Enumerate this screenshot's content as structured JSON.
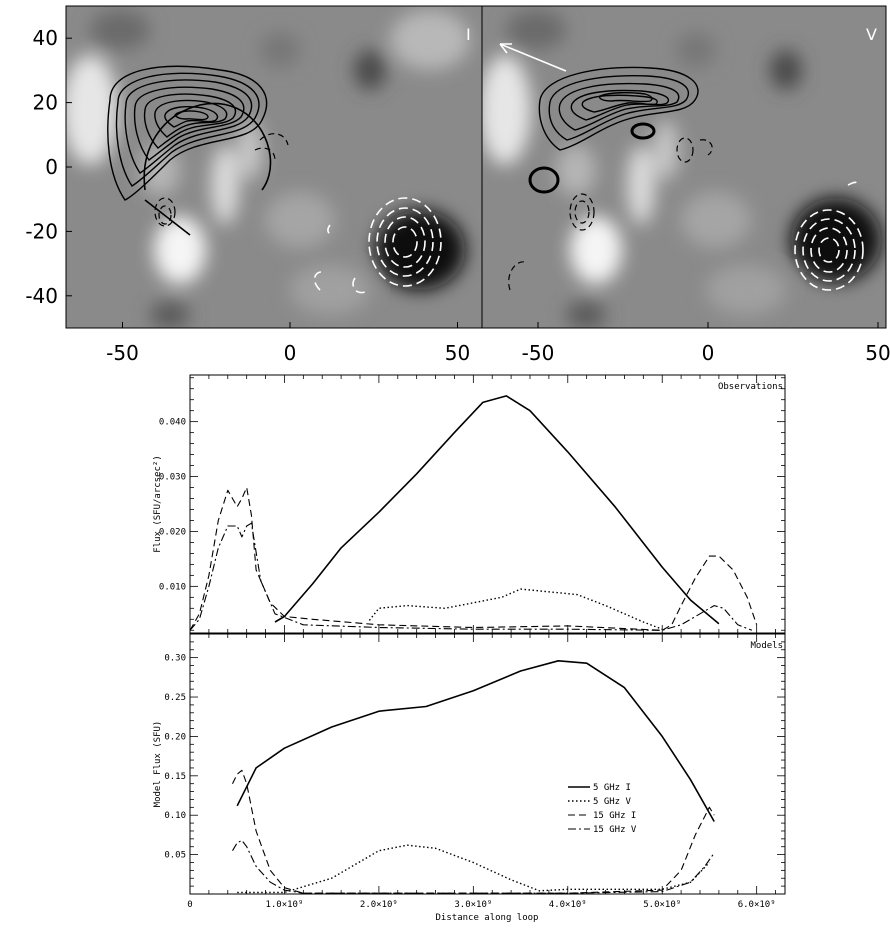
{
  "images": {
    "left": {
      "label": "I",
      "colors": {
        "line": "#000000",
        "dashed": "#ffffff"
      }
    },
    "right": {
      "label": "V",
      "colors": {
        "line": "#000000",
        "dashed": "#ffffff"
      }
    },
    "x_ticks": [
      "-50",
      "0",
      "50"
    ],
    "y_ticks": [
      "40",
      "20",
      "0",
      "-20",
      "-40"
    ]
  },
  "chart_data": [
    {
      "type": "line",
      "annotation": "Observations",
      "ylabel": "Flux (SFU/arcsec²)",
      "xlabel": "",
      "xlim": [
        0,
        6300000000.0
      ],
      "ylim": [
        0.0015,
        0.0485
      ],
      "ytick_values": [
        0.01,
        0.02,
        0.03,
        0.04
      ],
      "ytick_labels": [
        "0.010",
        "0.020",
        "0.030",
        "0.040"
      ],
      "series": [
        {
          "style": "solid",
          "x": [
            900000000.0,
            1000000000.0,
            1300000000.0,
            1600000000.0,
            2000000000.0,
            2400000000.0,
            2800000000.0,
            3100000000.0,
            3350000000.0,
            3600000000.0,
            4000000000.0,
            4500000000.0,
            5000000000.0,
            5300000000.0,
            5600000000.0
          ],
          "values": [
            0.0035,
            0.0045,
            0.0105,
            0.017,
            0.0235,
            0.0305,
            0.038,
            0.0435,
            0.0447,
            0.042,
            0.0345,
            0.0245,
            0.0135,
            0.0075,
            0.0032
          ]
        },
        {
          "style": "dotted",
          "x": [
            1900000000.0,
            2000000000.0,
            2300000000.0,
            2700000000.0,
            3000000000.0,
            3300000000.0,
            3500000000.0,
            3800000000.0,
            4100000000.0,
            4400000000.0,
            4800000000.0,
            5000000000.0
          ],
          "values": [
            0.0038,
            0.006,
            0.0065,
            0.006,
            0.007,
            0.008,
            0.0095,
            0.009,
            0.0085,
            0.0065,
            0.0035,
            0.0022
          ]
        },
        {
          "style": "dashed",
          "x": [
            0,
            100000000.0,
            200000000.0,
            300000000.0,
            400000000.0,
            450000000.0,
            500000000.0,
            550000000.0,
            600000000.0,
            650000000.0,
            700000000.0,
            850000000.0,
            1000000000.0,
            1300000000.0,
            2000000000.0,
            3000000000.0,
            4000000000.0,
            4500000000.0,
            5000000000.0,
            5100000000.0,
            5200000000.0,
            5350000000.0,
            5500000000.0,
            5600000000.0,
            5750000000.0,
            5900000000.0,
            6000000000.0
          ],
          "values": [
            0.002,
            0.005,
            0.012,
            0.022,
            0.0275,
            0.026,
            0.0245,
            0.026,
            0.028,
            0.023,
            0.013,
            0.007,
            0.0045,
            0.004,
            0.003,
            0.0025,
            0.0028,
            0.0024,
            0.002,
            0.003,
            0.0065,
            0.0115,
            0.0155,
            0.0155,
            0.013,
            0.008,
            0.003
          ]
        },
        {
          "style": "dashdot",
          "x": [
            0,
            100000000.0,
            200000000.0,
            300000000.0,
            400000000.0,
            500000000.0,
            550000000.0,
            600000000.0,
            650000000.0,
            750000000.0,
            900000000.0,
            1200000000.0,
            2000000000.0,
            3000000000.0,
            4000000000.0,
            5000000000.0,
            5200000000.0,
            5400000000.0,
            5550000000.0,
            5650000000.0,
            5800000000.0,
            5950000000.0
          ],
          "values": [
            0.002,
            0.004,
            0.01,
            0.017,
            0.021,
            0.021,
            0.019,
            0.021,
            0.0215,
            0.011,
            0.005,
            0.003,
            0.0025,
            0.0022,
            0.0022,
            0.002,
            0.003,
            0.005,
            0.0065,
            0.006,
            0.003,
            0.002
          ]
        }
      ]
    },
    {
      "type": "line",
      "annotation": "Models",
      "ylabel": "Model Flux (SFU)",
      "xlabel": "Distance along loop",
      "xlim": [
        0,
        6300000000.0
      ],
      "ylim": [
        0,
        0.33
      ],
      "ytick_values": [
        0.05,
        0.1,
        0.15,
        0.2,
        0.25,
        0.3
      ],
      "ytick_labels": [
        "0.05",
        "0.10",
        "0.15",
        "0.20",
        "0.25",
        "0.30"
      ],
      "xtick_values": [
        0,
        1000000000.0,
        2000000000.0,
        3000000000.0,
        4000000000.0,
        5000000000.0,
        6000000000.0
      ],
      "xtick_labels": [
        "0",
        "1.0×10⁹",
        "2.0×10⁹",
        "3.0×10⁹",
        "4.0×10⁹",
        "5.0×10⁹",
        "6.0×10⁹"
      ],
      "legend": [
        {
          "label": "5 GHz I",
          "style": "solid"
        },
        {
          "label": "5 GHz V",
          "style": "dotted"
        },
        {
          "label": "15 GHz I",
          "style": "dashed"
        },
        {
          "label": "15 GHz V",
          "style": "dashdot"
        }
      ],
      "series": [
        {
          "name": "5 GHz I",
          "style": "solid",
          "x": [
            500000000.0,
            700000000.0,
            1000000000.0,
            1500000000.0,
            2000000000.0,
            2500000000.0,
            3000000000.0,
            3500000000.0,
            3900000000.0,
            4200000000.0,
            4600000000.0,
            5000000000.0,
            5300000000.0,
            5550000000.0
          ],
          "values": [
            0.112,
            0.16,
            0.185,
            0.212,
            0.232,
            0.238,
            0.258,
            0.283,
            0.296,
            0.293,
            0.262,
            0.2,
            0.145,
            0.092
          ]
        },
        {
          "name": "5 GHz V",
          "style": "dotted",
          "x": [
            500000000.0,
            700000000.0,
            1000000000.0,
            1500000000.0,
            2000000000.0,
            2300000000.0,
            2600000000.0,
            3000000000.0,
            3400000000.0,
            3700000000.0,
            4000000000.0,
            4500000000.0,
            5000000000.0,
            5300000000.0,
            5500000000.0
          ],
          "values": [
            0.002,
            0.002,
            0.002,
            0.02,
            0.055,
            0.062,
            0.058,
            0.04,
            0.018,
            0.004,
            0.006,
            0.006,
            0.006,
            0.015,
            0.04
          ]
        },
        {
          "name": "15 GHz I",
          "style": "dashed",
          "x": [
            450000000.0,
            500000000.0,
            550000000.0,
            600000000.0,
            700000000.0,
            850000000.0,
            1000000000.0,
            1200000000.0,
            2000000000.0,
            3000000000.0,
            4000000000.0,
            5000000000.0,
            5200000000.0,
            5350000000.0,
            5500000000.0,
            5550000000.0
          ],
          "values": [
            0.14,
            0.152,
            0.157,
            0.14,
            0.08,
            0.03,
            0.008,
            0.001,
            0.001,
            0.001,
            0.001,
            0.005,
            0.03,
            0.075,
            0.11,
            0.1
          ]
        },
        {
          "name": "15 GHz V",
          "style": "dashdot",
          "x": [
            450000000.0,
            500000000.0,
            550000000.0,
            600000000.0,
            700000000.0,
            850000000.0,
            1000000000.0,
            1200000000.0,
            2000000000.0,
            3000000000.0,
            4000000000.0,
            5000000000.0,
            5300000000.0,
            5450000000.0,
            5550000000.0
          ],
          "values": [
            0.055,
            0.065,
            0.068,
            0.06,
            0.035,
            0.015,
            0.005,
            0.001,
            0.001,
            0.001,
            0.001,
            0.003,
            0.015,
            0.035,
            0.052
          ]
        }
      ]
    }
  ]
}
